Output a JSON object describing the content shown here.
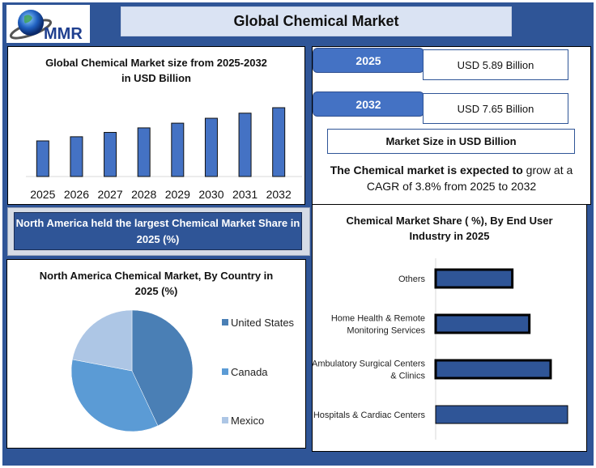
{
  "header": {
    "logo_text": "MMR",
    "title": "Global Chemical Market"
  },
  "summary": {
    "rows": [
      {
        "year": "2025",
        "value": "USD 5.89 Billion"
      },
      {
        "year": "2032",
        "value": "USD 7.65 Billion"
      }
    ],
    "market_size_label": "Market Size in USD Billion",
    "cagr_bold": "The Chemical market is expected to",
    "cagr_rest": " grow at a CAGR of 3.8% from 2025 to 2032"
  },
  "banner": {
    "text": "North America held the largest Chemical Market Share in 2025 (%)"
  },
  "colors": {
    "frame": "#2f5597",
    "bar": "#4472c4",
    "hbar": "#2f5597",
    "us": "#4a7fb5",
    "canada": "#5b9bd5",
    "mexico": "#adc6e5"
  },
  "chart_data": [
    {
      "type": "bar",
      "title": "Global Chemical Market size from 2025-2032 in USD Billion",
      "categories": [
        "2025",
        "2026",
        "2027",
        "2028",
        "2029",
        "2030",
        "2031",
        "2032"
      ],
      "values": [
        5.89,
        6.11,
        6.34,
        6.58,
        6.83,
        7.09,
        7.36,
        7.65
      ],
      "xlabel": "",
      "ylabel": "",
      "grid": false
    },
    {
      "type": "pie",
      "title": "North America Chemical Market, By Country in 2025 (%)",
      "labels": [
        "United States",
        "Canada",
        "Mexico"
      ],
      "values": [
        43,
        35,
        22
      ],
      "legend": "right"
    },
    {
      "type": "bar",
      "orientation": "horizontal",
      "title": "Chemical Market Share ( %), By End User Industry in 2025",
      "categories": [
        "Others",
        "Home Health & Remote Monitoring Services",
        "Ambulatory Surgical Centers & Clinics",
        "Hospitals & Cardiac Centers"
      ],
      "category_lines": [
        [
          "Others"
        ],
        [
          "Home Health & Remote",
          "Monitoring Services"
        ],
        [
          "Ambulatory Surgical Centers",
          "& Clinics"
        ],
        [
          "Hospitals & Cardiac Centers"
        ]
      ],
      "values": [
        18,
        22,
        27,
        31
      ],
      "grid": false
    }
  ]
}
